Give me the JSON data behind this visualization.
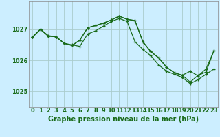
{
  "background_color": "#cceeff",
  "grid_color": "#aacccc",
  "line_color": "#1a6b1a",
  "title": "Graphe pression niveau de la mer (hPa)",
  "xlim": [
    -0.5,
    23.5
  ],
  "ylim": [
    1024.5,
    1027.9
  ],
  "yticks": [
    1025,
    1026,
    1027
  ],
  "xticks": [
    0,
    1,
    2,
    3,
    4,
    5,
    6,
    7,
    8,
    9,
    10,
    11,
    12,
    13,
    14,
    15,
    16,
    17,
    18,
    19,
    20,
    21,
    22,
    23
  ],
  "title_fontsize": 7.0,
  "tick_fontsize": 6.0,
  "line1_y": [
    1026.75,
    1027.0,
    1026.8,
    1026.75,
    1026.55,
    1026.5,
    1026.45,
    1026.85,
    1026.95,
    1027.1,
    1027.25,
    1027.35,
    1027.25,
    1026.6,
    1026.35,
    1026.15,
    1025.85,
    1025.65,
    1025.55,
    1025.45,
    1025.25,
    1025.38,
    1025.55,
    1025.72
  ],
  "line2_y": [
    1026.75,
    1027.0,
    1026.78,
    1026.76,
    1026.55,
    1026.48,
    1026.65,
    1027.05,
    1027.12,
    1027.2,
    1027.3,
    1027.42,
    1027.32,
    1027.28,
    1026.6,
    1026.28,
    1026.08,
    1025.78,
    1025.6,
    1025.52,
    1025.65,
    1025.5,
    1025.72,
    1026.3
  ],
  "line3_y": [
    1026.75,
    1027.0,
    1026.78,
    1026.76,
    1026.55,
    1026.48,
    1026.65,
    1027.05,
    1027.12,
    1027.2,
    1027.3,
    1027.42,
    1027.32,
    1027.28,
    1026.6,
    1026.28,
    1026.08,
    1025.78,
    1025.6,
    1025.52,
    1025.3,
    1025.52,
    1025.62,
    1026.3
  ]
}
